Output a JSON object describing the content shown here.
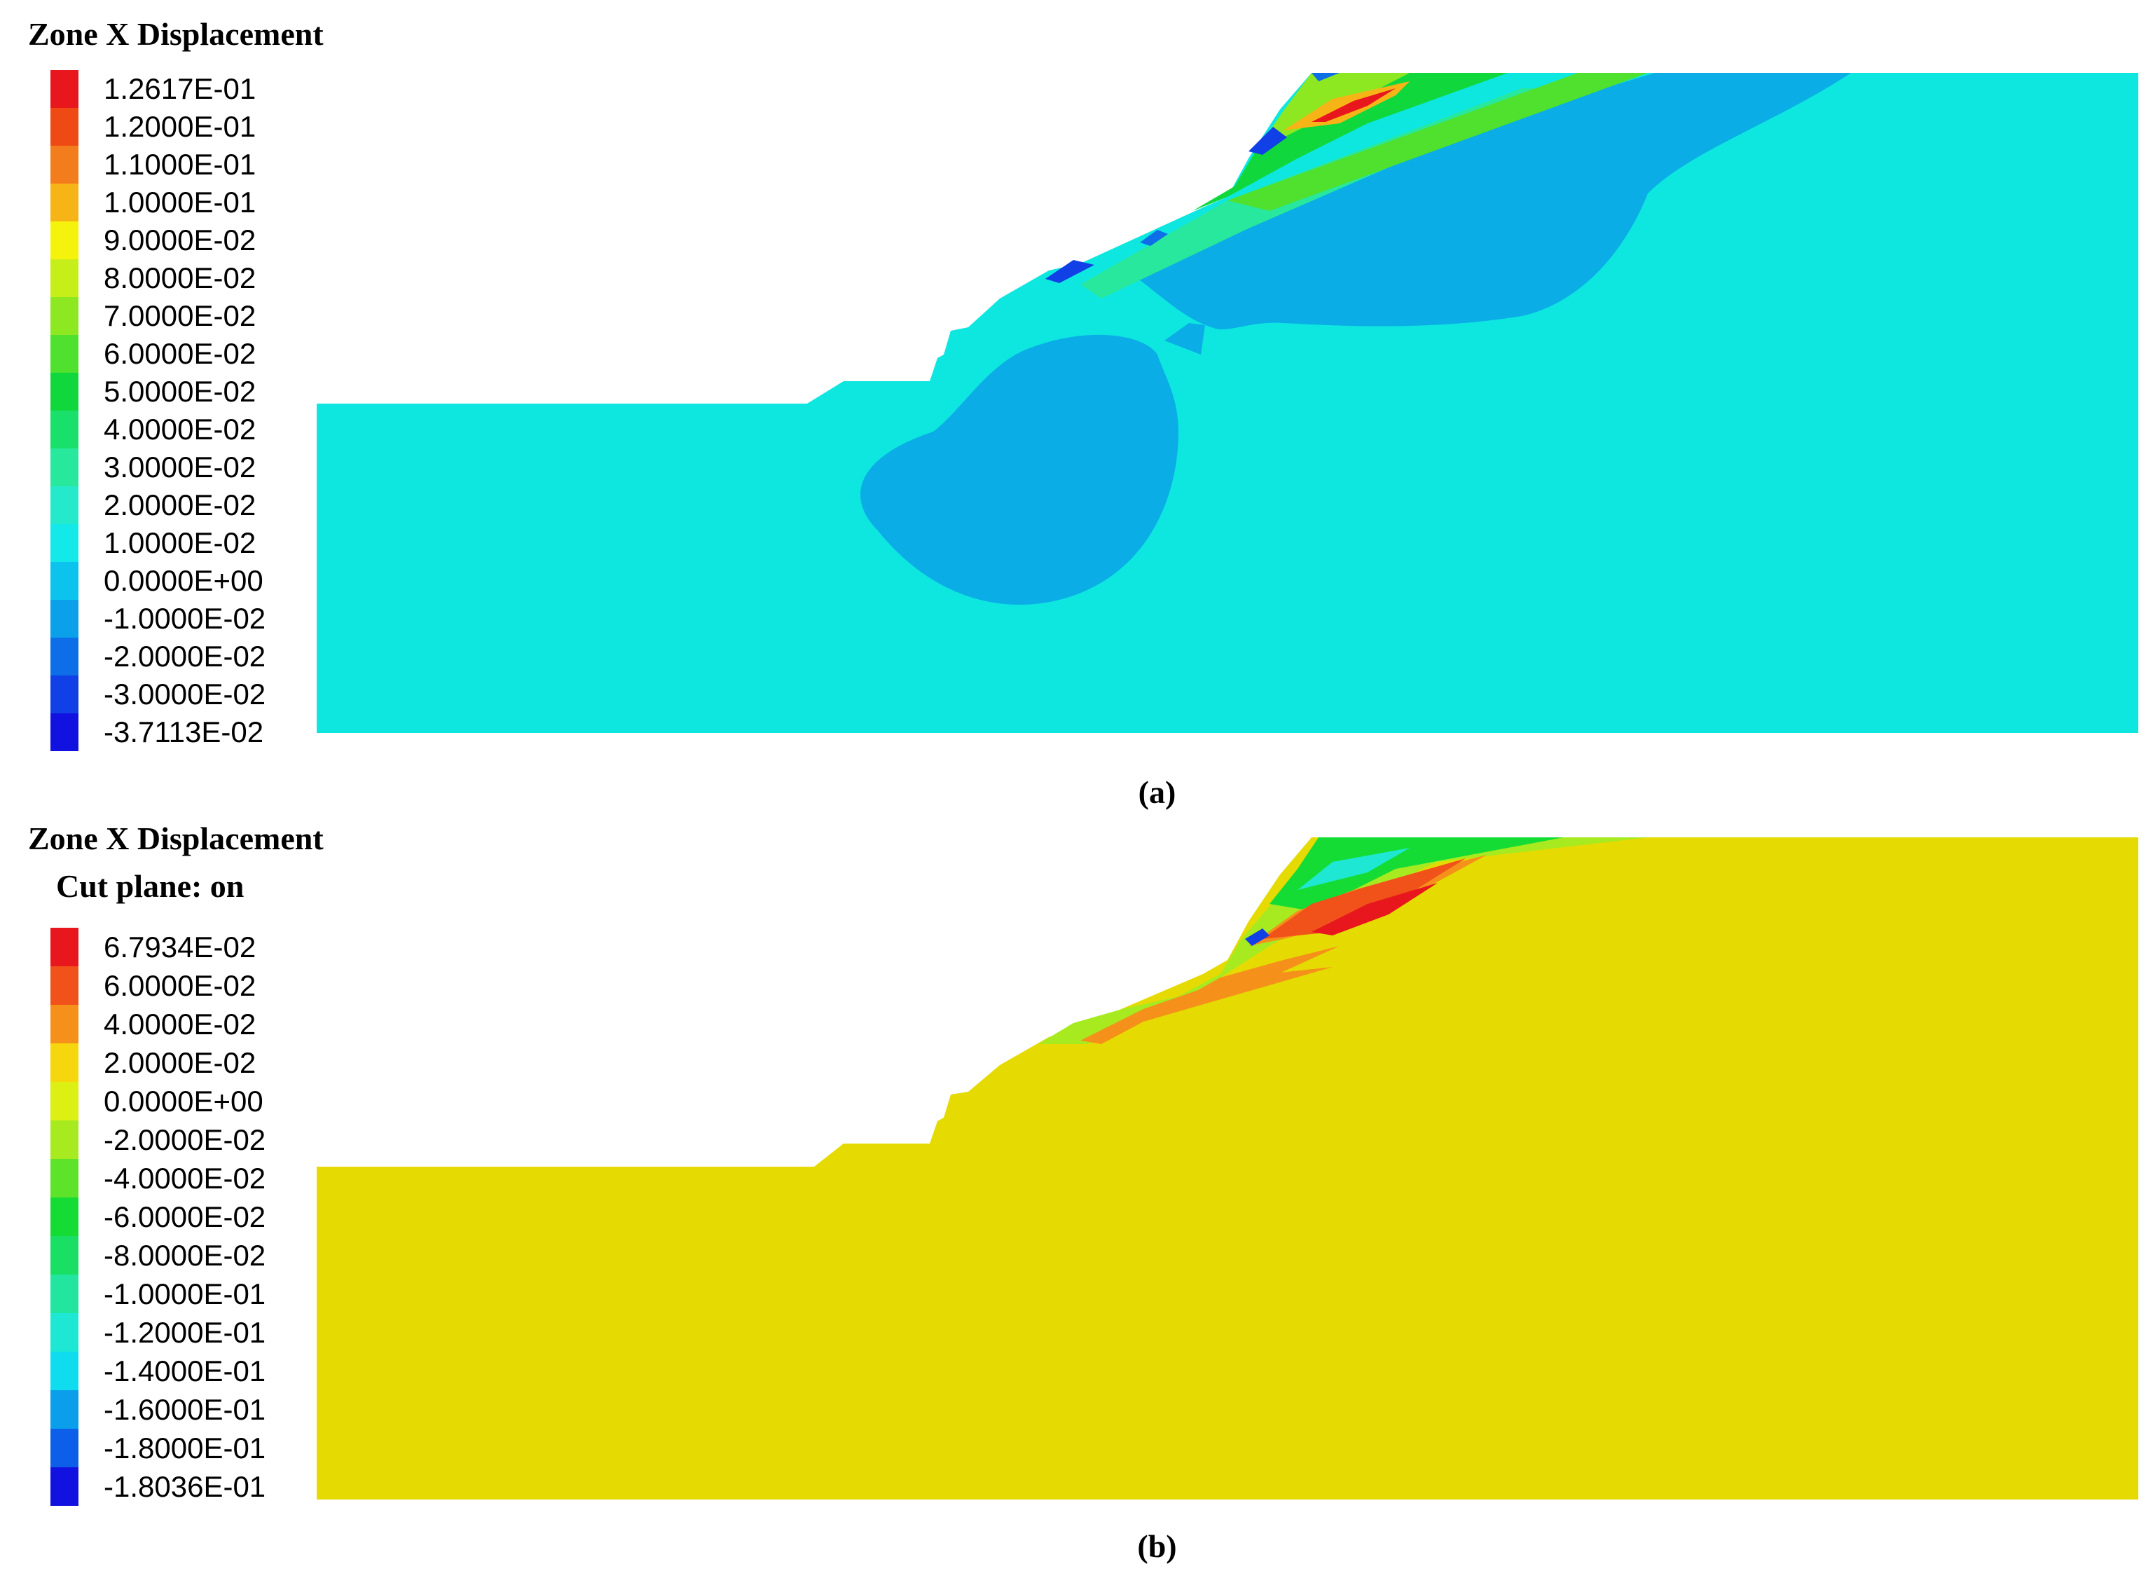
{
  "panels": {
    "a": {
      "title": "Zone X Displacement",
      "caption": "(a)",
      "legend": [
        {
          "label": "1.2617E-01",
          "color": "#e8161d"
        },
        {
          "label": "1.2000E-01",
          "color": "#f04a14"
        },
        {
          "label": "1.1000E-01",
          "color": "#f37c1c"
        },
        {
          "label": "1.0000E-01",
          "color": "#f7b416"
        },
        {
          "label": "9.0000E-02",
          "color": "#f5f20c"
        },
        {
          "label": "8.0000E-02",
          "color": "#c6ef19"
        },
        {
          "label": "7.0000E-02",
          "color": "#8ee821"
        },
        {
          "label": "6.0000E-02",
          "color": "#4fe12d"
        },
        {
          "label": "5.0000E-02",
          "color": "#10d83c"
        },
        {
          "label": "4.0000E-02",
          "color": "#19e06a"
        },
        {
          "label": "3.0000E-02",
          "color": "#27e89d"
        },
        {
          "label": "2.0000E-02",
          "color": "#24eacb"
        },
        {
          "label": "1.0000E-02",
          "color": "#12e9e8"
        },
        {
          "label": "0.0000E+00",
          "color": "#0bc3ed"
        },
        {
          "label": "-1.0000E-02",
          "color": "#0aa0ea"
        },
        {
          "label": "-2.0000E-02",
          "color": "#0d6ee8"
        },
        {
          "label": "-3.0000E-02",
          "color": "#1040e6"
        },
        {
          "label": "-3.7113E-02",
          "color": "#1212e0"
        }
      ]
    },
    "b": {
      "title": "Zone X Displacement",
      "subtitle": "Cut plane: on",
      "caption": "(b)",
      "legend": [
        {
          "label": "6.7934E-02",
          "color": "#e8161d"
        },
        {
          "label": "6.0000E-02",
          "color": "#f0521a"
        },
        {
          "label": "4.0000E-02",
          "color": "#f5901a"
        },
        {
          "label": "2.0000E-02",
          "color": "#f6d60c"
        },
        {
          "label": "0.0000E+00",
          "color": "#dcf014"
        },
        {
          "label": "-2.0000E-02",
          "color": "#a6ea1f"
        },
        {
          "label": "-4.0000E-02",
          "color": "#5ee32b"
        },
        {
          "label": "-6.0000E-02",
          "color": "#14dc34"
        },
        {
          "label": "-8.0000E-02",
          "color": "#19df64"
        },
        {
          "label": "-1.0000E-01",
          "color": "#22e6a0"
        },
        {
          "label": "-1.2000E-01",
          "color": "#1ee8d3"
        },
        {
          "label": "-1.4000E-01",
          "color": "#10dcef"
        },
        {
          "label": "-1.6000E-01",
          "color": "#0b9eea"
        },
        {
          "label": "-1.8000E-01",
          "color": "#0d5ee8"
        },
        {
          "label": "-1.8036E-01",
          "color": "#1212e0"
        }
      ]
    }
  },
  "colors": {
    "a_background": "#0ee6e0",
    "a_negative_zone": "#0aade6",
    "b_background": "#e5db02"
  }
}
